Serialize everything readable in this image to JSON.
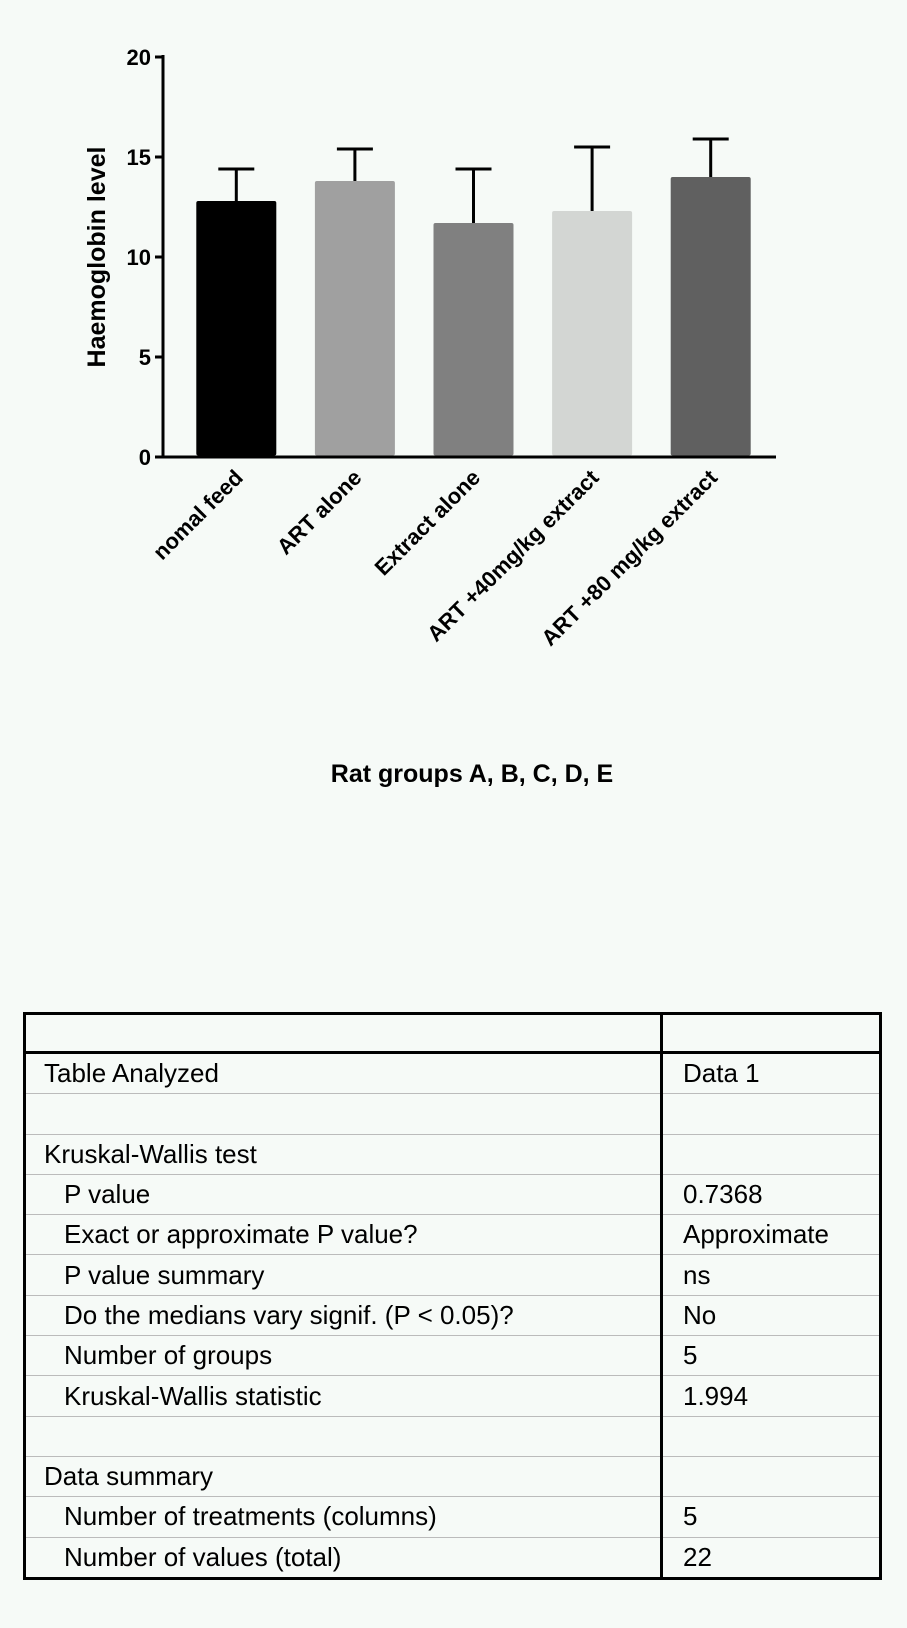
{
  "chart_data": {
    "type": "bar",
    "ylabel": "Haemoglobin level",
    "xlabel": "Rat groups A, B, C, D, E",
    "ylim": [
      0,
      20
    ],
    "yticks": [
      0,
      5,
      10,
      15,
      20
    ],
    "categories": [
      "nomal feed",
      "ART alone",
      "Extract alone",
      "ART +40mg/kg extract",
      "ART +80 mg/kg extract"
    ],
    "values": [
      12.8,
      13.8,
      11.7,
      12.3,
      14.0
    ],
    "error_upper": [
      14.4,
      15.4,
      14.4,
      15.5,
      15.9
    ],
    "colors": [
      "#000000",
      "#a0a0a0",
      "#808080",
      "#d3d6d3",
      "#606060"
    ],
    "grid": false
  },
  "table": {
    "header": [
      "",
      ""
    ],
    "rows": [
      {
        "label": "Table Analyzed",
        "value": "Data 1",
        "indent": false
      },
      {
        "label": "",
        "value": "",
        "indent": false
      },
      {
        "label": "Kruskal-Wallis test",
        "value": "",
        "indent": false
      },
      {
        "label": "P value",
        "value": "0.7368",
        "indent": true
      },
      {
        "label": "Exact or approximate P value?",
        "value": "Approximate",
        "indent": true
      },
      {
        "label": "P value summary",
        "value": "ns",
        "indent": true
      },
      {
        "label": "Do the medians vary signif. (P < 0.05)?",
        "value": "No",
        "indent": true
      },
      {
        "label": "Number of groups",
        "value": "5",
        "indent": true
      },
      {
        "label": "Kruskal-Wallis statistic",
        "value": "1.994",
        "indent": true
      },
      {
        "label": "",
        "value": "",
        "indent": false
      },
      {
        "label": "Data summary",
        "value": "",
        "indent": false
      },
      {
        "label": "Number of treatments (columns)",
        "value": "5",
        "indent": true
      },
      {
        "label": "Number of values (total)",
        "value": "22",
        "indent": true
      }
    ]
  }
}
